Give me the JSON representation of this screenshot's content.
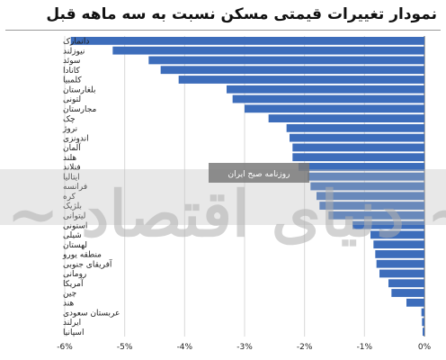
{
  "chart_data": {
    "type": "bar",
    "orientation": "horizontal",
    "title": "نمودار تغییرات قیمتی مسکن نسبت به سه ماهه قبل",
    "xlabel": "",
    "ylabel": "",
    "xlim": [
      -6,
      0
    ],
    "x_ticks": [
      "-6%",
      "-5%",
      "-4%",
      "-3%",
      "-2%",
      "-1%",
      "0%"
    ],
    "grid": true,
    "legend": "none",
    "bar_color": "#3d6dbb",
    "categories": [
      "دانمارک",
      "نیوزلند",
      "سوئد",
      "کانادا",
      "کلمبیا",
      "بلغارستان",
      "لتونی",
      "مجارستان",
      "چک",
      "نروژ",
      "اندونزی",
      "آلمان",
      "هلند",
      "فنلاند",
      "ایتالیا",
      "فرانسه",
      "کره",
      "بلژیک",
      "لیتوانی",
      "استونی",
      "شیلی",
      "لهستان",
      "منطقه یورو",
      "آفریقای جنوبی",
      "رومانی",
      "آمریکا",
      "چین",
      "هند",
      "عربستان سعودی",
      "ایرلند",
      "اسپانیا"
    ],
    "values": [
      -5.9,
      -5.2,
      -4.6,
      -4.4,
      -4.1,
      -3.3,
      -3.2,
      -3.0,
      -2.6,
      -2.3,
      -2.25,
      -2.2,
      -2.2,
      -2.1,
      -1.95,
      -1.9,
      -1.8,
      -1.75,
      -1.6,
      -1.2,
      -0.9,
      -0.85,
      -0.82,
      -0.8,
      -0.75,
      -0.6,
      -0.55,
      -0.3,
      -0.05,
      -0.04,
      -0.03
    ]
  },
  "watermark": {
    "box_text": "روزنامه صبح ایران"
  }
}
